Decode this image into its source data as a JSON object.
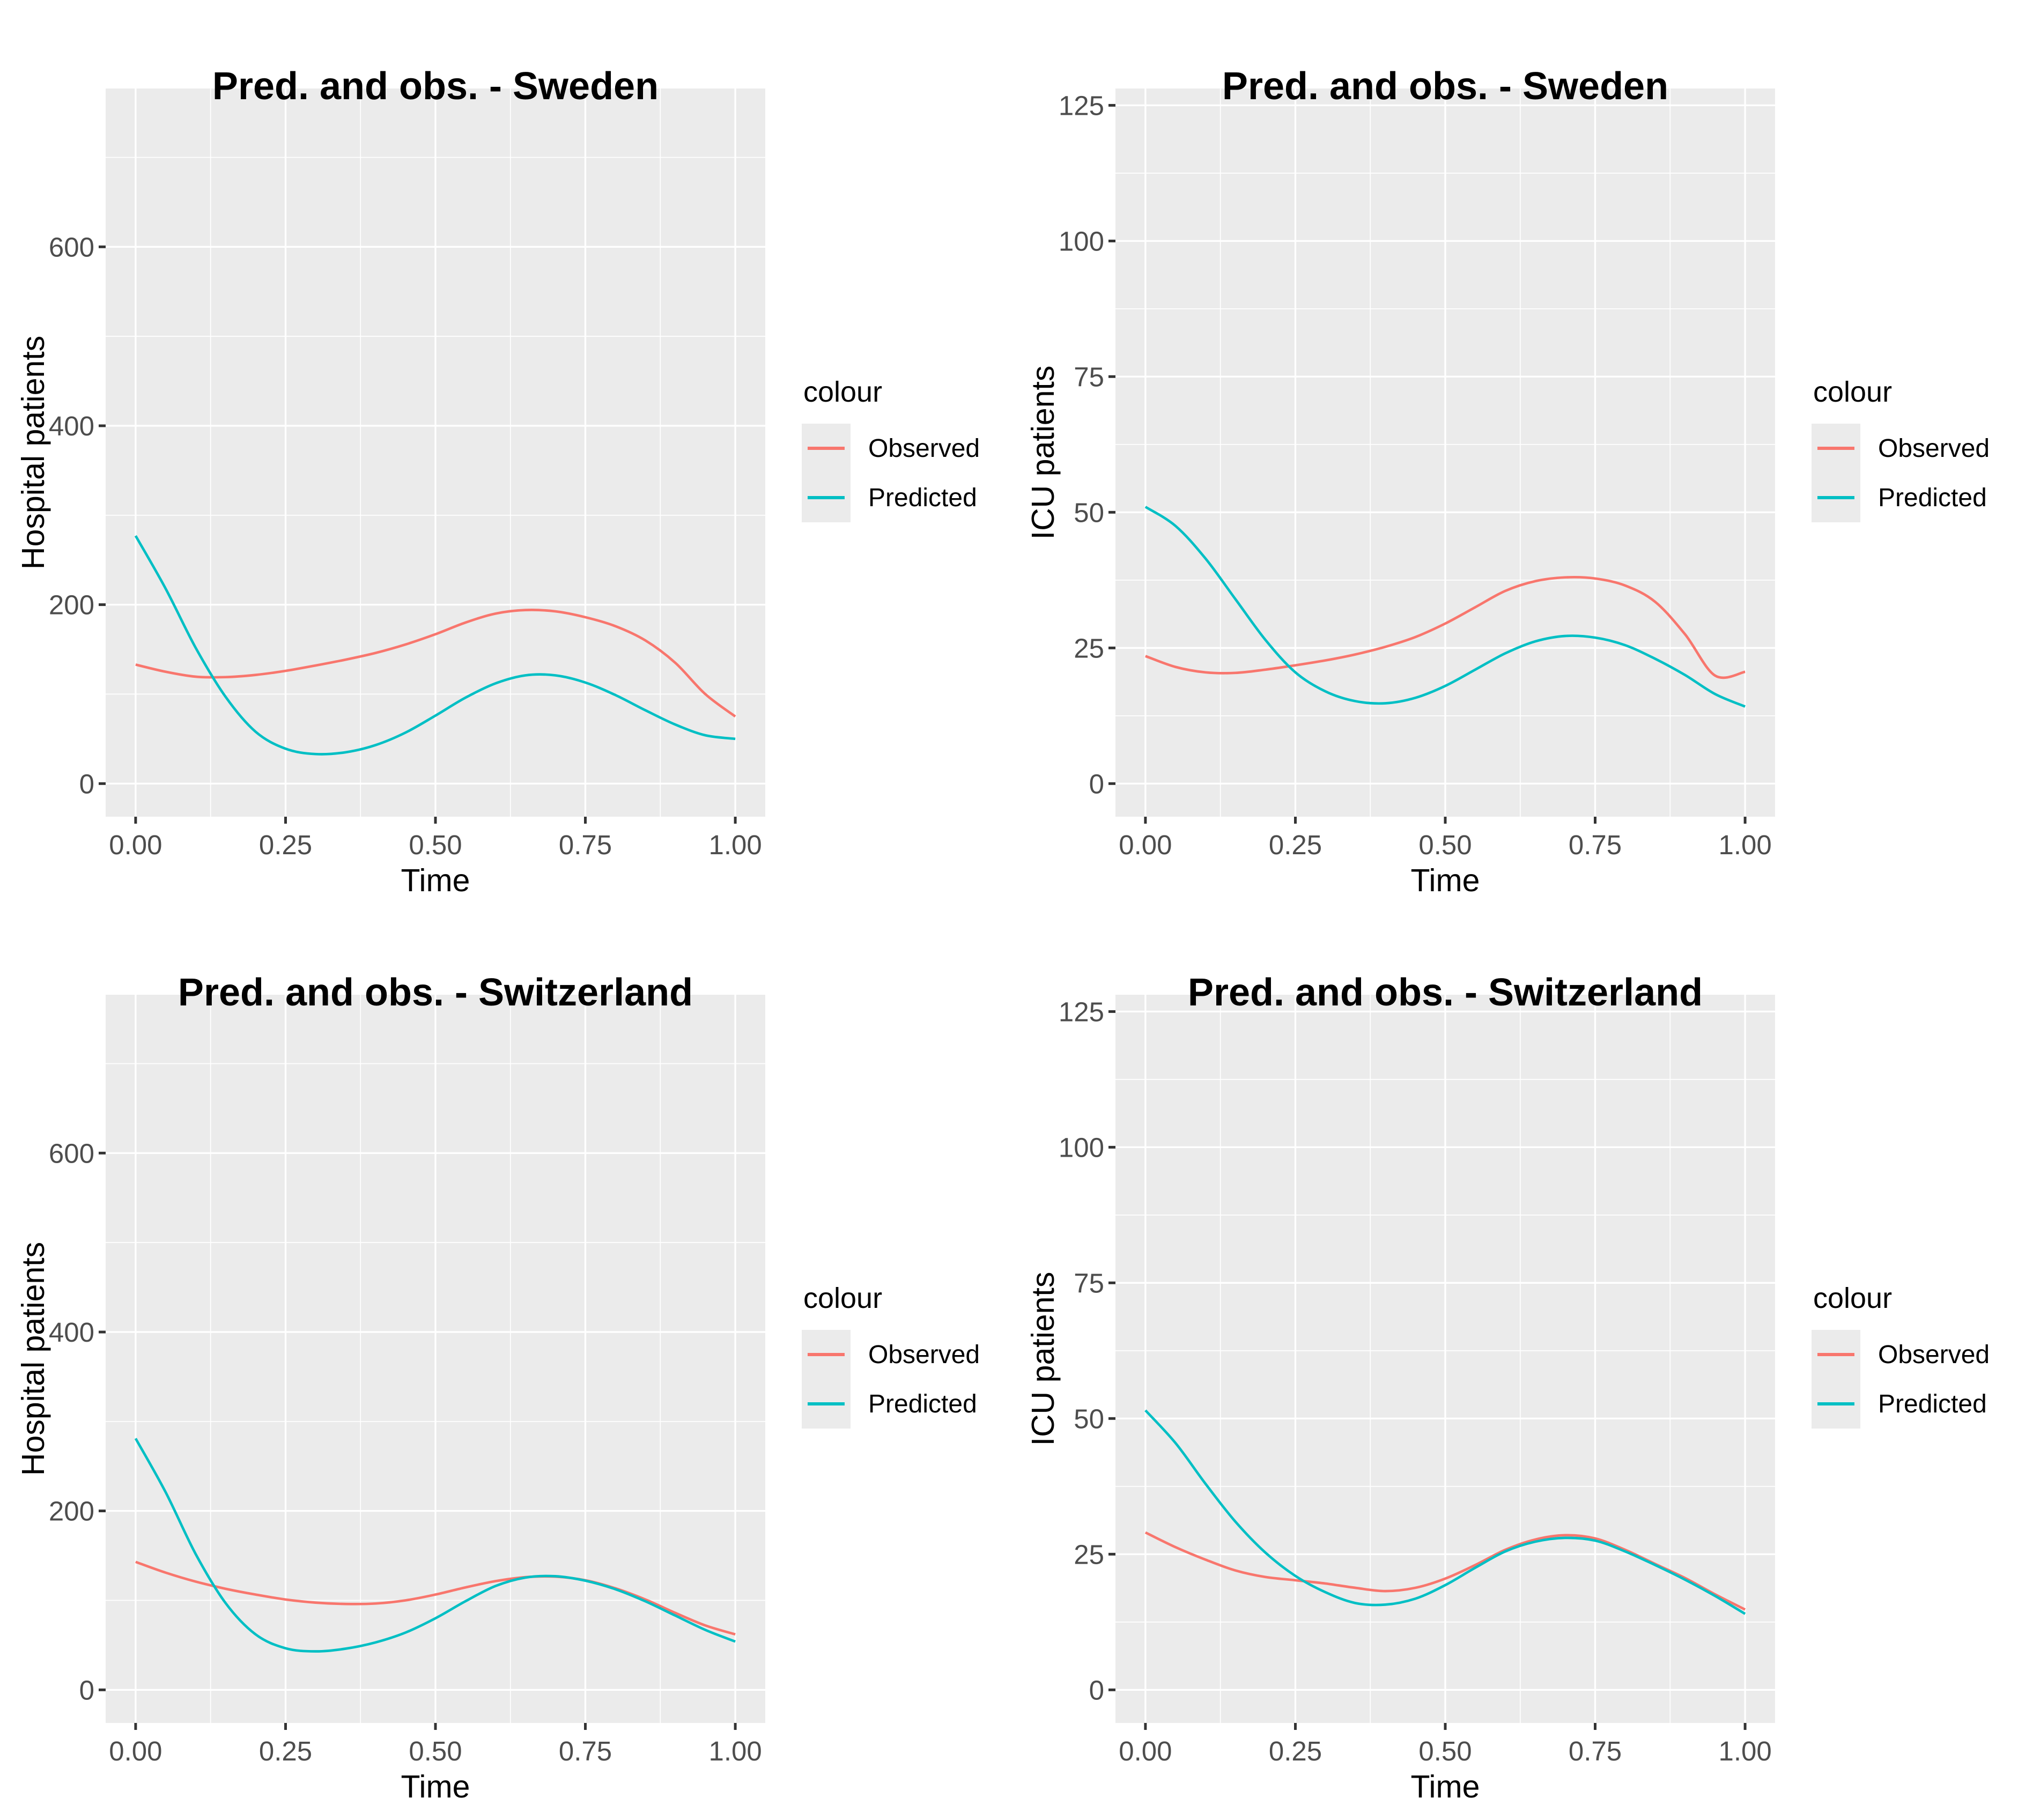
{
  "colors": {
    "observed": "#F8766D",
    "predicted": "#00BFC4",
    "panel_bg": "#EBEBEB",
    "grid": "#FFFFFF",
    "tick_mark": "#333333",
    "tick_label": "#4D4D4D"
  },
  "legend": {
    "title": "colour",
    "items": [
      {
        "label": "Observed",
        "color": "#F8766D"
      },
      {
        "label": "Predicted",
        "color": "#00BFC4"
      }
    ]
  },
  "chart_data": [
    {
      "id": "sweden-hospital",
      "type": "line",
      "title": "Pred. and obs. - Sweden",
      "xlabel": "Time",
      "ylabel": "Hospital patients",
      "legend_position": "right",
      "grid": true,
      "xlim": [
        -0.05,
        1.05
      ],
      "ylim": [
        -37,
        777
      ],
      "xticks": [
        0,
        0.25,
        0.5,
        0.75,
        1
      ],
      "xtick_labels": [
        "0.00",
        "0.25",
        "0.50",
        "0.75",
        "1.00"
      ],
      "x_minor": [
        0.125,
        0.375,
        0.625,
        0.875
      ],
      "yticks": [
        0,
        200,
        400,
        600
      ],
      "ytick_labels": [
        "0",
        "200",
        "400",
        "600"
      ],
      "y_minor": [
        100,
        300,
        500,
        700
      ],
      "x": [
        0,
        0.05,
        0.1,
        0.15,
        0.2,
        0.25,
        0.3,
        0.35,
        0.4,
        0.45,
        0.5,
        0.55,
        0.6,
        0.65,
        0.7,
        0.75,
        0.8,
        0.85,
        0.9,
        0.95,
        1
      ],
      "series": [
        {
          "name": "Observed",
          "color": "#F8766D",
          "values": [
            133,
            125,
            119.5,
            119,
            121.5,
            126,
            132,
            138.5,
            146,
            155.5,
            167,
            180,
            190,
            194,
            192.5,
            186,
            176,
            160,
            135,
            100,
            75
          ]
        },
        {
          "name": "Predicted",
          "color": "#00BFC4",
          "values": [
            277,
            218,
            152,
            97,
            58,
            39,
            33,
            35,
            43,
            57,
            76,
            96,
            112,
            121,
            121,
            113,
            99,
            82,
            66,
            54,
            50
          ]
        }
      ]
    },
    {
      "id": "sweden-icu",
      "type": "line",
      "title": "Pred. and obs. - Sweden",
      "xlabel": "Time",
      "ylabel": "ICU patients",
      "legend_position": "right",
      "grid": true,
      "xlim": [
        -0.05,
        1.05
      ],
      "ylim": [
        -6.1,
        128.1
      ],
      "xticks": [
        0,
        0.25,
        0.5,
        0.75,
        1
      ],
      "xtick_labels": [
        "0.00",
        "0.25",
        "0.50",
        "0.75",
        "1.00"
      ],
      "x_minor": [
        0.125,
        0.375,
        0.625,
        0.875
      ],
      "yticks": [
        0,
        25,
        50,
        75,
        100,
        125
      ],
      "ytick_labels": [
        "0",
        "25",
        "50",
        "75",
        "100",
        "125"
      ],
      "y_minor": [
        12.5,
        37.5,
        62.5,
        87.5,
        112.5
      ],
      "x": [
        0,
        0.05,
        0.1,
        0.15,
        0.2,
        0.25,
        0.3,
        0.35,
        0.4,
        0.45,
        0.5,
        0.55,
        0.6,
        0.65,
        0.7,
        0.75,
        0.8,
        0.85,
        0.9,
        0.95,
        1
      ],
      "series": [
        {
          "name": "Observed",
          "color": "#F8766D",
          "values": [
            23.5,
            21.5,
            20.5,
            20.4,
            21,
            21.8,
            22.7,
            23.8,
            25.2,
            27,
            29.5,
            32.5,
            35.5,
            37.3,
            38,
            37.8,
            36.5,
            33.5,
            27.5,
            19.9,
            20.6
          ]
        },
        {
          "name": "Predicted",
          "color": "#00BFC4",
          "values": [
            51,
            47.5,
            41.5,
            34,
            26.5,
            20.5,
            17,
            15.2,
            14.8,
            15.8,
            18,
            21,
            24,
            26.2,
            27.2,
            26.9,
            25.5,
            23,
            20,
            16.5,
            14.2
          ]
        }
      ]
    },
    {
      "id": "switzerland-hospital",
      "type": "line",
      "title": "Pred. and obs. - Switzerland",
      "xlabel": "Time",
      "ylabel": "Hospital patients",
      "legend_position": "right",
      "grid": true,
      "xlim": [
        -0.05,
        1.05
      ],
      "ylim": [
        -37,
        777
      ],
      "xticks": [
        0,
        0.25,
        0.5,
        0.75,
        1
      ],
      "xtick_labels": [
        "0.00",
        "0.25",
        "0.50",
        "0.75",
        "1.00"
      ],
      "x_minor": [
        0.125,
        0.375,
        0.625,
        0.875
      ],
      "yticks": [
        0,
        200,
        400,
        600
      ],
      "ytick_labels": [
        "0",
        "200",
        "400",
        "600"
      ],
      "y_minor": [
        100,
        300,
        500,
        700
      ],
      "x": [
        0,
        0.05,
        0.1,
        0.15,
        0.2,
        0.25,
        0.3,
        0.35,
        0.4,
        0.45,
        0.5,
        0.55,
        0.6,
        0.65,
        0.7,
        0.75,
        0.8,
        0.85,
        0.9,
        0.95,
        1
      ],
      "series": [
        {
          "name": "Observed",
          "color": "#F8766D",
          "values": [
            143,
            131,
            121,
            113,
            106.5,
            101,
            97.5,
            96,
            96.5,
            100,
            106.5,
            114.5,
            121.5,
            126,
            126.5,
            122.5,
            113.5,
            101,
            86,
            72,
            62
          ]
        },
        {
          "name": "Predicted",
          "color": "#00BFC4",
          "values": [
            281,
            221,
            152,
            97,
            62,
            46.5,
            43,
            46,
            53,
            64,
            80,
            99,
            116,
            125.5,
            127,
            122,
            112.5,
            99,
            83,
            67,
            54
          ]
        }
      ]
    },
    {
      "id": "switzerland-icu",
      "type": "line",
      "title": "Pred. and obs. - Switzerland",
      "xlabel": "Time",
      "ylabel": "ICU patients",
      "legend_position": "right",
      "grid": true,
      "xlim": [
        -0.05,
        1.05
      ],
      "ylim": [
        -6.1,
        128.1
      ],
      "xticks": [
        0,
        0.25,
        0.5,
        0.75,
        1
      ],
      "xtick_labels": [
        "0.00",
        "0.25",
        "0.50",
        "0.75",
        "1.00"
      ],
      "x_minor": [
        0.125,
        0.375,
        0.625,
        0.875
      ],
      "yticks": [
        0,
        25,
        50,
        75,
        100,
        125
      ],
      "ytick_labels": [
        "0",
        "25",
        "50",
        "75",
        "100",
        "125"
      ],
      "y_minor": [
        12.5,
        37.5,
        62.5,
        87.5,
        112.5
      ],
      "x": [
        0,
        0.05,
        0.1,
        0.15,
        0.2,
        0.25,
        0.3,
        0.35,
        0.4,
        0.45,
        0.5,
        0.55,
        0.6,
        0.65,
        0.7,
        0.75,
        0.8,
        0.85,
        0.9,
        0.95,
        1
      ],
      "series": [
        {
          "name": "Observed",
          "color": "#F8766D",
          "values": [
            29,
            26.3,
            24,
            22,
            20.8,
            20.2,
            19.6,
            18.8,
            18.2,
            18.8,
            20.5,
            23,
            25.8,
            27.7,
            28.5,
            27.9,
            25.8,
            23.2,
            20.6,
            17.6,
            14.8
          ]
        },
        {
          "name": "Predicted",
          "color": "#00BFC4",
          "values": [
            51.5,
            45.5,
            38,
            31,
            25.3,
            21,
            18,
            16,
            15.7,
            16.8,
            19.3,
            22.5,
            25.5,
            27.3,
            28,
            27.5,
            25.5,
            23,
            20.3,
            17.3,
            14
          ]
        }
      ]
    }
  ]
}
